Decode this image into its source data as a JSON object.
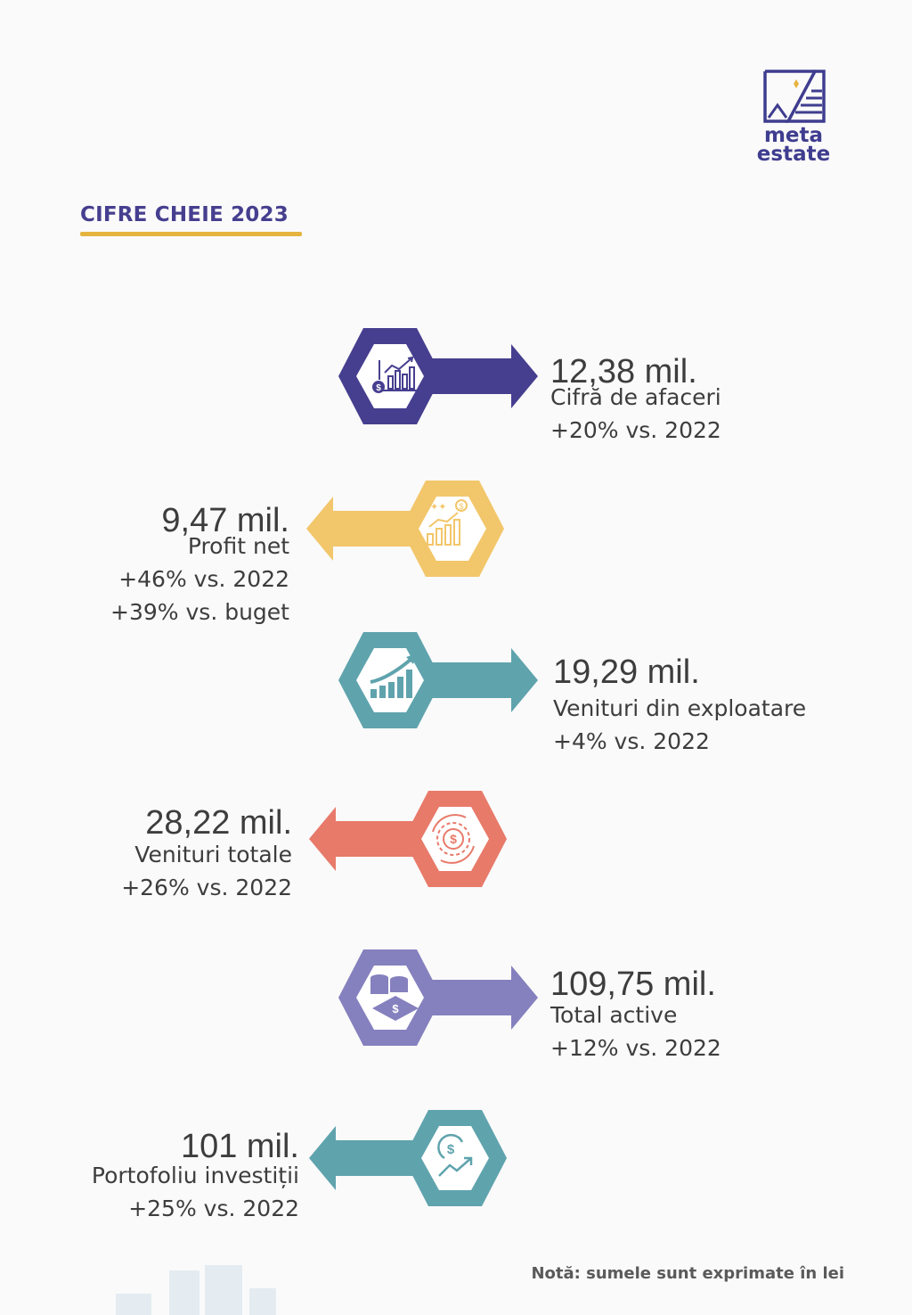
{
  "brand": {
    "line1": "meta",
    "line2": "estate",
    "color": "#3f3d8f",
    "icon": "house-document-logo-icon"
  },
  "section": {
    "title": "CIFRE CHEIE 2023",
    "accent": "#e5b43f"
  },
  "stats": [
    {
      "value": "12,38  mil.",
      "lines": [
        "Cifră de afaceri",
        "+20% vs. 2022"
      ],
      "color": "#463f8f",
      "direction": "right",
      "icon": "revenue-chart-icon"
    },
    {
      "value": "9,47  mil.",
      "lines": [
        "Profit net",
        "+46% vs. 2022",
        "+39% vs. buget"
      ],
      "color": "#f2c66a",
      "direction": "left",
      "icon": "growth-bars-icon"
    },
    {
      "value": "19,29  mil.",
      "lines": [
        "Venituri din exploatare",
        "+4% vs. 2022"
      ],
      "color": "#5fa3ad",
      "direction": "right",
      "icon": "trend-up-chart-icon"
    },
    {
      "value": "28,22  mil.",
      "lines": [
        "Venituri totale",
        "+26% vs. 2022"
      ],
      "color": "#e87a6a",
      "direction": "left",
      "icon": "money-gear-icon"
    },
    {
      "value": "109,75  mil.",
      "lines": [
        "Total active",
        "+12% vs. 2022"
      ],
      "color": "#8580be",
      "direction": "right",
      "icon": "coins-stack-icon"
    },
    {
      "value": "101  mil.",
      "lines": [
        "Portofoliu investiții",
        "+25% vs. 2022"
      ],
      "color": "#5fa3ad",
      "direction": "left",
      "icon": "dollar-growth-icon"
    }
  ],
  "note": "Notă: sumele sunt exprimate în lei"
}
